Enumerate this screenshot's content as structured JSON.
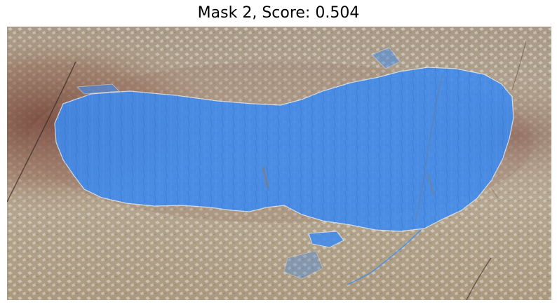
{
  "figure": {
    "title": "Mask 2, Score: 0.504"
  },
  "colors": {
    "skin_base": "#b5a893",
    "skin_dark": "#8f7f6a",
    "bruise": "#7a4a3c",
    "mask_fill": "#3d8bf0",
    "mask_edge": "#dce6f2"
  }
}
